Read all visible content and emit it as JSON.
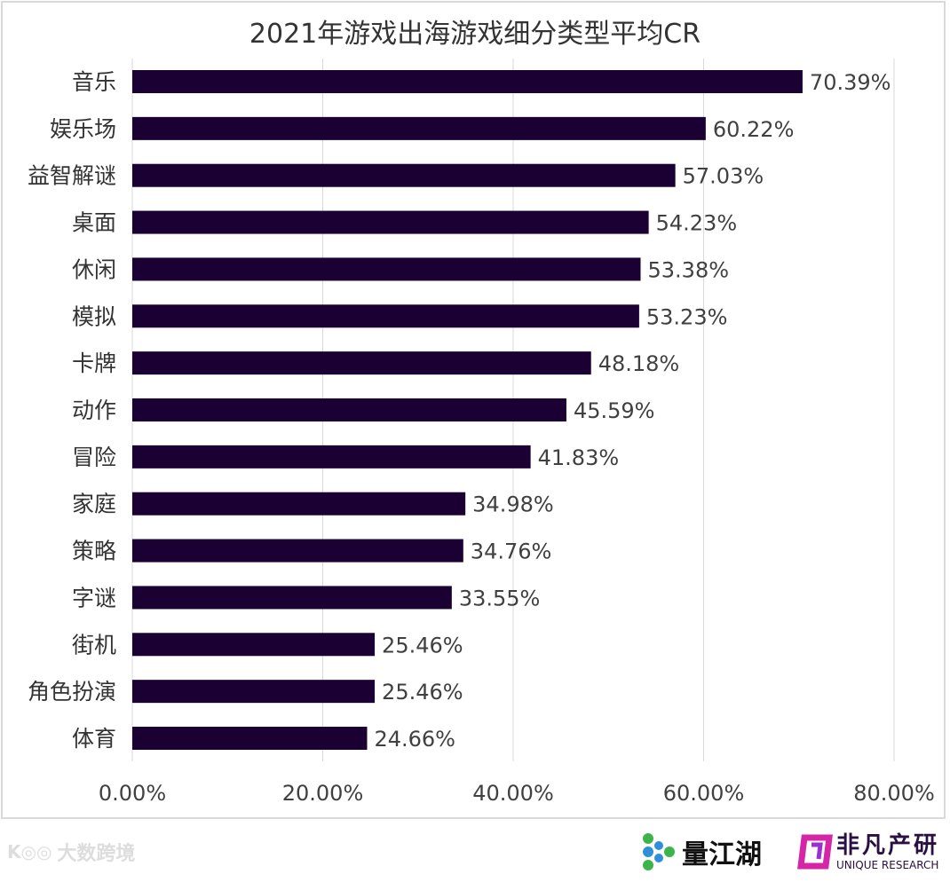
{
  "chart_data": {
    "type": "bar",
    "orientation": "horizontal",
    "title": "2021年游戏出海游戏细分类型平均CR",
    "categories": [
      "音乐",
      "娱乐场",
      "益智解谜",
      "桌面",
      "休闲",
      "模拟",
      "卡牌",
      "动作",
      "冒险",
      "家庭",
      "策略",
      "字谜",
      "街机",
      "角色扮演",
      "体育"
    ],
    "values": [
      70.39,
      60.22,
      57.03,
      54.23,
      53.38,
      53.23,
      48.18,
      45.59,
      41.83,
      34.98,
      34.76,
      33.55,
      25.46,
      25.46,
      24.66
    ],
    "data_labels": [
      "70.39%",
      "60.22%",
      "57.03%",
      "54.23%",
      "53.38%",
      "53.23%",
      "48.18%",
      "45.59%",
      "41.83%",
      "34.98%",
      "34.76%",
      "33.55%",
      "25.46%",
      "25.46%",
      "24.66%"
    ],
    "xlim": [
      0,
      80
    ],
    "x_ticks": [
      0,
      20,
      40,
      60,
      80
    ],
    "x_tick_labels": [
      "0.00%",
      "20.00%",
      "40.00%",
      "60.00%",
      "80.00%"
    ],
    "grid": "vertical",
    "bar_color": "#1a0033",
    "legend": "none"
  },
  "footer": {
    "watermark": "大数跨境",
    "logo1": "量江湖",
    "logo2": "非凡产研",
    "logo2_sub": "UNIQUE RESEARCH"
  }
}
